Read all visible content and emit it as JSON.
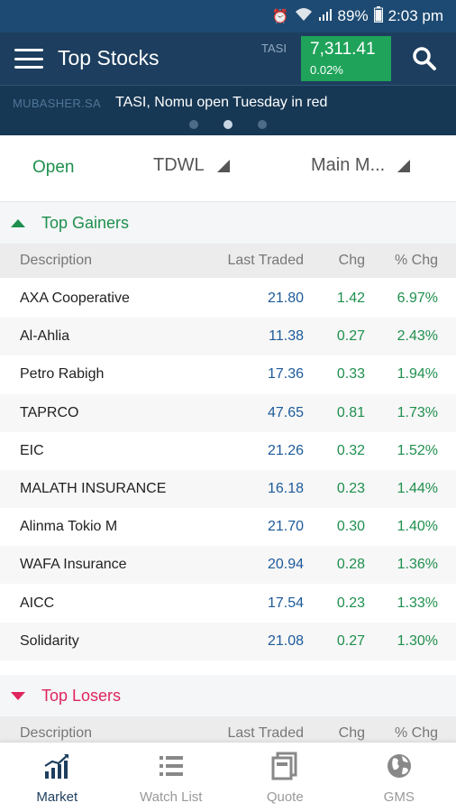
{
  "status_bar": {
    "battery": "89%",
    "time": "2:03 pm"
  },
  "header": {
    "title": "Top Stocks",
    "index_label": "TASI",
    "index_value": "7,311.41",
    "index_change": "0.02%"
  },
  "news": {
    "source": "MUBASHER.SA",
    "headline": "TASI, Nomu open Tuesday in red"
  },
  "filters": {
    "status": "Open",
    "exchange": "TDWL",
    "market": "Main M..."
  },
  "columns": {
    "description": "Description",
    "last_traded": "Last Traded",
    "chg": "Chg",
    "pct_chg": "% Chg"
  },
  "gainers": {
    "title": "Top Gainers",
    "rows": [
      {
        "name": "AXA Cooperative",
        "last": "21.80",
        "chg": "1.42",
        "pct": "6.97%"
      },
      {
        "name": "Al-Ahlia",
        "last": "11.38",
        "chg": "0.27",
        "pct": "2.43%"
      },
      {
        "name": "Petro Rabigh",
        "last": "17.36",
        "chg": "0.33",
        "pct": "1.94%"
      },
      {
        "name": "TAPRCO",
        "last": "47.65",
        "chg": "0.81",
        "pct": "1.73%"
      },
      {
        "name": "EIC",
        "last": "21.26",
        "chg": "0.32",
        "pct": "1.52%"
      },
      {
        "name": "MALATH INSURANCE",
        "last": "16.18",
        "chg": "0.23",
        "pct": "1.44%"
      },
      {
        "name": "Alinma Tokio M",
        "last": "21.70",
        "chg": "0.30",
        "pct": "1.40%"
      },
      {
        "name": "WAFA Insurance",
        "last": "20.94",
        "chg": "0.28",
        "pct": "1.36%"
      },
      {
        "name": "AICC",
        "last": "17.54",
        "chg": "0.23",
        "pct": "1.33%"
      },
      {
        "name": "Solidarity",
        "last": "21.08",
        "chg": "0.27",
        "pct": "1.30%"
      }
    ]
  },
  "losers": {
    "title": "Top Losers"
  },
  "nav": {
    "market": "Market",
    "watch_list": "Watch List",
    "quote": "Quote",
    "gms": "GMS"
  },
  "colors": {
    "header_bg": "#1d3e5e",
    "gain_green": "#1f8f4e",
    "loss_red": "#e0245e",
    "price_blue": "#1d5a9a"
  }
}
